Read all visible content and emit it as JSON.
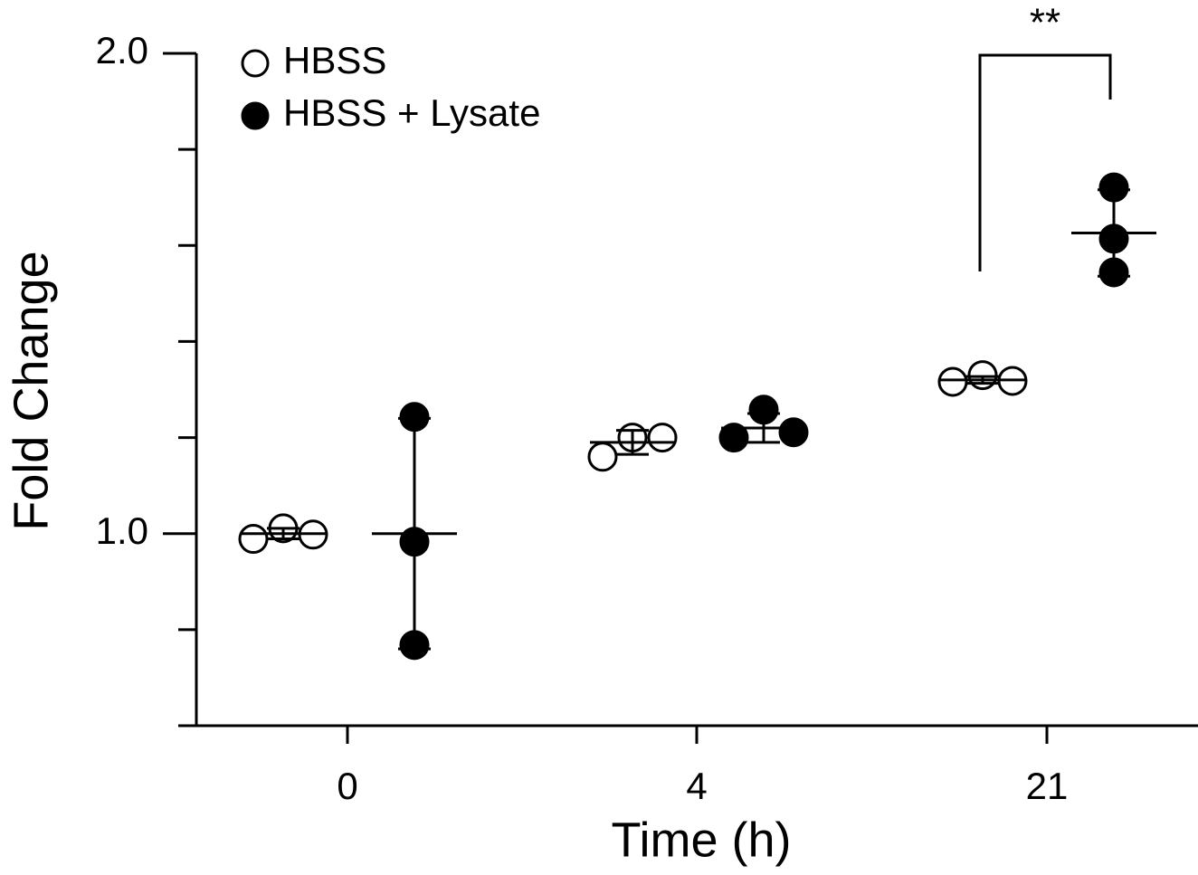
{
  "chart_data": {
    "type": "scatter",
    "x_label": "Time (h)",
    "y_label": "Fold Change",
    "categories": [
      "0",
      "4",
      "21"
    ],
    "ylim": [
      0.6,
      2.0
    ],
    "yticks": [
      {
        "value": 1,
        "label": "1.0"
      },
      {
        "value": 2,
        "label": "2.0"
      }
    ],
    "minor_yticks": [
      0.8,
      1.2,
      1.4,
      1.6,
      1.8
    ],
    "series": [
      {
        "name": "HBSS",
        "color": "#ffffff",
        "values": [
          [
            0.989,
            1.011,
            0.998
          ],
          [
            1.16,
            1.2,
            1.2
          ],
          [
            1.316,
            1.33,
            1.318
          ]
        ],
        "mean": [
          1.0,
          1.19,
          1.32
        ],
        "error": [
          0.011,
          0.025,
          0.007
        ]
      },
      {
        "name": "HBSS + Lysate",
        "color": "#000000",
        "values": [
          [
            1.243,
            0.983,
            0.768
          ],
          [
            1.2,
            1.258,
            1.211
          ],
          [
            1.721,
            1.614,
            1.544
          ]
        ],
        "mean": [
          1.0,
          1.22,
          1.626
        ],
        "error": [
          0.24,
          0.03,
          0.09
        ]
      }
    ],
    "annotation": "**"
  }
}
